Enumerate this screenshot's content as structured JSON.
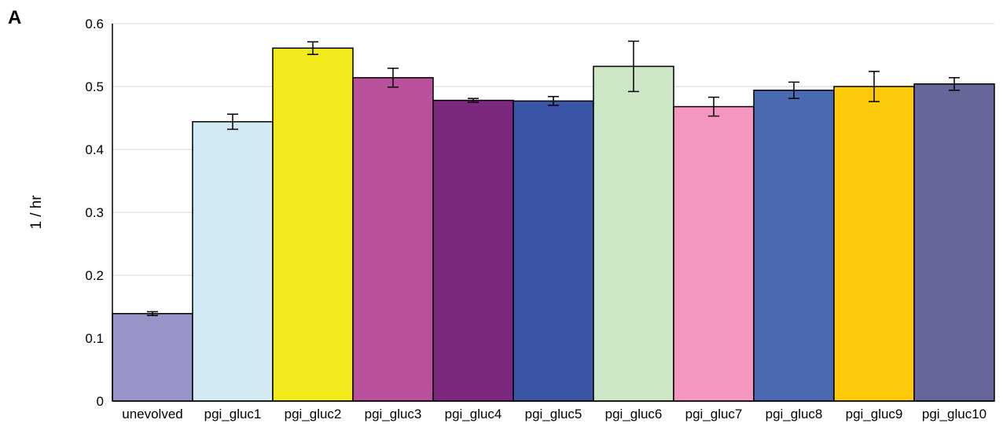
{
  "panel_label": "A",
  "chart_data": {
    "type": "bar",
    "title": "",
    "xlabel": "",
    "ylabel": "1 / hr",
    "ylim": [
      0,
      0.6
    ],
    "yticks": [
      "0",
      "0.1",
      "0.2",
      "0.3",
      "0.4",
      "0.5",
      "0.6"
    ],
    "grid": true,
    "categories": [
      "unevolved",
      "pgi_gluc1",
      "pgi_gluc2",
      "pgi_gluc3",
      "pgi_gluc4",
      "pgi_gluc5",
      "pgi_gluc6",
      "pgi_gluc7",
      "pgi_gluc8",
      "pgi_gluc9",
      "pgi_gluc10"
    ],
    "values": [
      0.139,
      0.444,
      0.561,
      0.514,
      0.478,
      0.477,
      0.532,
      0.468,
      0.494,
      0.5,
      0.504
    ],
    "errors": [
      0.003,
      0.012,
      0.01,
      0.015,
      0.003,
      0.007,
      0.04,
      0.015,
      0.013,
      0.024,
      0.01
    ],
    "colors": [
      "#9794C8",
      "#D3EAF4",
      "#F2EA1B",
      "#B9519C",
      "#7C287C",
      "#3A55A5",
      "#CDE6C6",
      "#F497BF",
      "#4B69B1",
      "#FDCA0A",
      "#666699"
    ]
  }
}
